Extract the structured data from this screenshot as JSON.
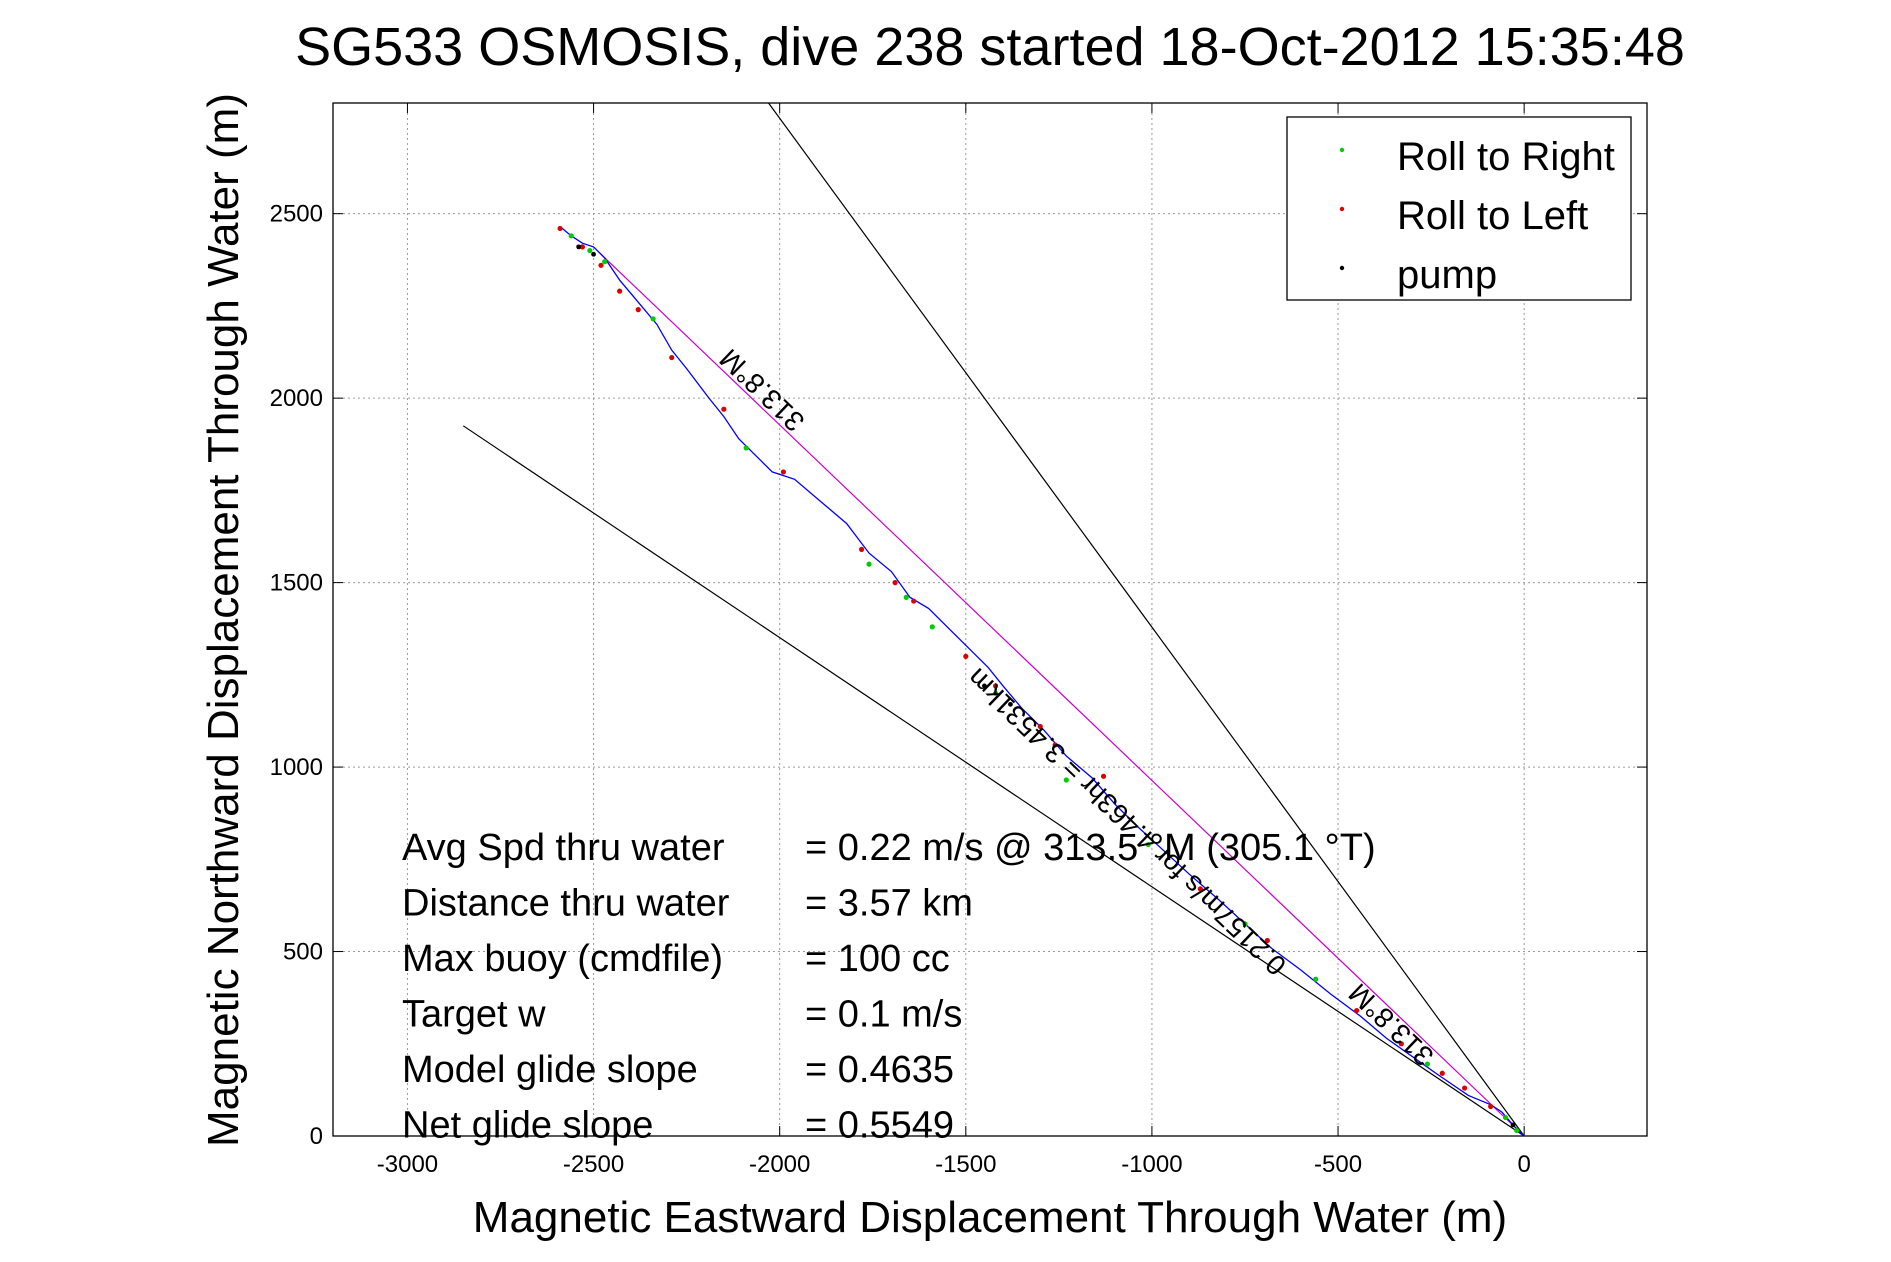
{
  "chart_data": {
    "type": "scatter",
    "title": "SG533 OSMOSIS, dive 238 started 18-Oct-2012 15:35:48",
    "xlabel": "Magnetic Eastward Displacement Through Water (m)",
    "ylabel": "Magnetic Northward Displacement Through Water (m)",
    "xlim": [
      -3200,
      330
    ],
    "ylim": [
      0,
      2800
    ],
    "xticks": [
      -3000,
      -2500,
      -2000,
      -1500,
      -1000,
      -500,
      0
    ],
    "yticks": [
      0,
      500,
      1000,
      1500,
      2000,
      2500
    ],
    "xtick_labels": [
      "-3000",
      "-2500",
      "-2000",
      "-1500",
      "-1000",
      "-500",
      "0"
    ],
    "ytick_labels": [
      "0",
      "500",
      "1000",
      "1500",
      "2000",
      "2500"
    ],
    "grid": true,
    "legend_position": "top-right",
    "legend": [
      {
        "label": "Roll to Right",
        "color": "#00cc00"
      },
      {
        "label": "Roll to Left",
        "color": "#dd0000"
      },
      {
        "label": "pump",
        "color": "#000000"
      }
    ],
    "track": {
      "color": "#0000ff",
      "x": [
        0,
        -30,
        -60,
        -90,
        -150,
        -230,
        -300,
        -370,
        -440,
        -520,
        -600,
        -680,
        -750,
        -820,
        -900,
        -970,
        -1040,
        -1100,
        -1160,
        -1230,
        -1290,
        -1350,
        -1400,
        -1440,
        -1480,
        -1540,
        -1600,
        -1650,
        -1700,
        -1760,
        -1820,
        -1890,
        -1960,
        -2020,
        -2080,
        -2110,
        -2150,
        -2190,
        -2250,
        -2290,
        -2330,
        -2380,
        -2430,
        -2470,
        -2500,
        -2530,
        -2560,
        -2590
      ],
      "y": [
        0,
        30,
        65,
        85,
        110,
        165,
        215,
        265,
        325,
        385,
        450,
        510,
        575,
        640,
        710,
        775,
        840,
        900,
        970,
        1030,
        1100,
        1160,
        1220,
        1270,
        1310,
        1370,
        1430,
        1460,
        1530,
        1580,
        1660,
        1720,
        1780,
        1800,
        1860,
        1890,
        1950,
        2000,
        2080,
        2130,
        2200,
        2260,
        2320,
        2380,
        2410,
        2420,
        2440,
        2465
      ]
    },
    "roll_right_points": {
      "x": [
        -20,
        -50,
        -260,
        -560,
        -750,
        -1010,
        -1230,
        -1420,
        -1590,
        -1660,
        -1760,
        -2090,
        -2340,
        -2470,
        -2510,
        -2560
      ],
      "y": [
        15,
        50,
        195,
        425,
        575,
        790,
        965,
        1200,
        1380,
        1460,
        1550,
        1865,
        2215,
        2370,
        2400,
        2440
      ]
    },
    "roll_left_points": {
      "x": [
        -90,
        -160,
        -220,
        -330,
        -450,
        -690,
        -870,
        -1130,
        -1260,
        -1300,
        -1420,
        -1500,
        -1640,
        -1690,
        -1780,
        -1990,
        -2150,
        -2290,
        -2380,
        -2430,
        -2480,
        -2530,
        -2590
      ],
      "y": [
        80,
        130,
        170,
        250,
        340,
        530,
        670,
        975,
        1060,
        1110,
        1220,
        1300,
        1450,
        1500,
        1590,
        1800,
        1970,
        2110,
        2240,
        2290,
        2360,
        2410,
        2460
      ]
    },
    "pump_points": {
      "x": [
        -30,
        -1380,
        -1450,
        -2500,
        -2540
      ],
      "y": [
        30,
        1170,
        1220,
        2390,
        2410
      ]
    },
    "reference_lines": [
      {
        "name": "upper-bound-line",
        "color": "#000000",
        "x": [
          0,
          -2030
        ],
        "y": [
          0,
          2800
        ]
      },
      {
        "name": "lower-bound-line",
        "color": "#000000",
        "x": [
          0,
          -2850
        ],
        "y": [
          0,
          1925
        ]
      },
      {
        "name": "heading-line",
        "color": "#cc00cc",
        "x": [
          0,
          -2480
        ],
        "y": [
          0,
          2390
        ]
      }
    ],
    "line_annotations": [
      {
        "text": "313.8°M",
        "x": -2030,
        "y": 2040,
        "rotate": 223.8,
        "font_size": 28
      },
      {
        "text": "0.2157m/s for 4.463hr = 3.4531km",
        "x": -1050,
        "y": 870,
        "rotate": 223.8,
        "font_size": 28
      },
      {
        "text": "313.8°M",
        "x": -340,
        "y": 320,
        "rotate": 223.8,
        "font_size": 28
      }
    ],
    "stats_rows": [
      {
        "label": "Avg Spd thru water",
        "value": "=  0.22 m/s @ 313.5 °M (305.1 °T)"
      },
      {
        "label": "Distance thru water",
        "value": "=  3.57 km"
      },
      {
        "label": "Max buoy (cmdfile)",
        "value": "= 100 cc"
      },
      {
        "label": "Target w",
        "value": "= 0.1 m/s"
      },
      {
        "label": "Model glide slope",
        "value": "= 0.4635"
      },
      {
        "label": "Net glide slope",
        "value": "= 0.5549"
      }
    ]
  }
}
